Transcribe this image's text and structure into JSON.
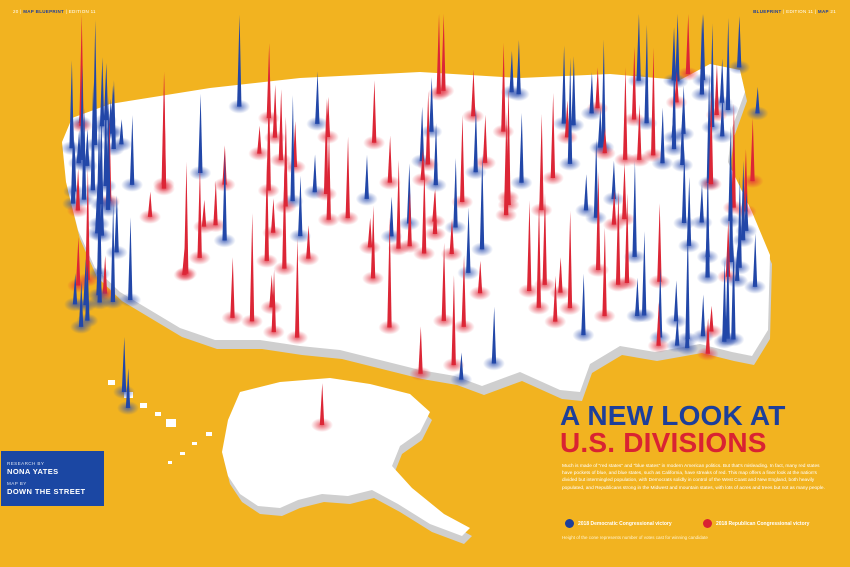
{
  "folio_left": {
    "page": "20",
    "section": "MAP",
    "series": "BLUEPRINT",
    "issue": "EDITION 11"
  },
  "folio_right": {
    "series": "BLUEPRINT",
    "issue": "EDITION 11",
    "section": "MAP",
    "page": "21"
  },
  "title": {
    "line1": "A NEW LOOK AT",
    "line2": "U.S. DIVISIONS"
  },
  "intro": "Much is made of \"red states\" and \"blue states\" in modern American politics. But that's misleading. In fact, many red states have pockets of blue, and blue states, such as California, have streaks of red. This map offers a finer look at the nation's divided but intermingled population, with Democrats solidly in control of the West Coast and New England, both heavily populated, and Republicans strong in the Midwest and mountain states, with lots of acres and trees but not as many people.",
  "legend": {
    "dem": {
      "label": "2018 Democratic Congressional victory",
      "color": "#1d3f9a"
    },
    "rep": {
      "label": "2018 Republican Congressional victory",
      "color": "#d92332"
    }
  },
  "footnote": "Height of the cone represents number of votes cast for winning candidate",
  "credits": {
    "research_label": "RESEARCH BY",
    "research_name": "NONA YATES",
    "map_label": "MAP BY",
    "map_name": "DOWN THE STREET"
  },
  "colors": {
    "background": "#f2b320",
    "land": "#ffffff",
    "dem": "#1d3f9a",
    "rep": "#d92332"
  }
}
